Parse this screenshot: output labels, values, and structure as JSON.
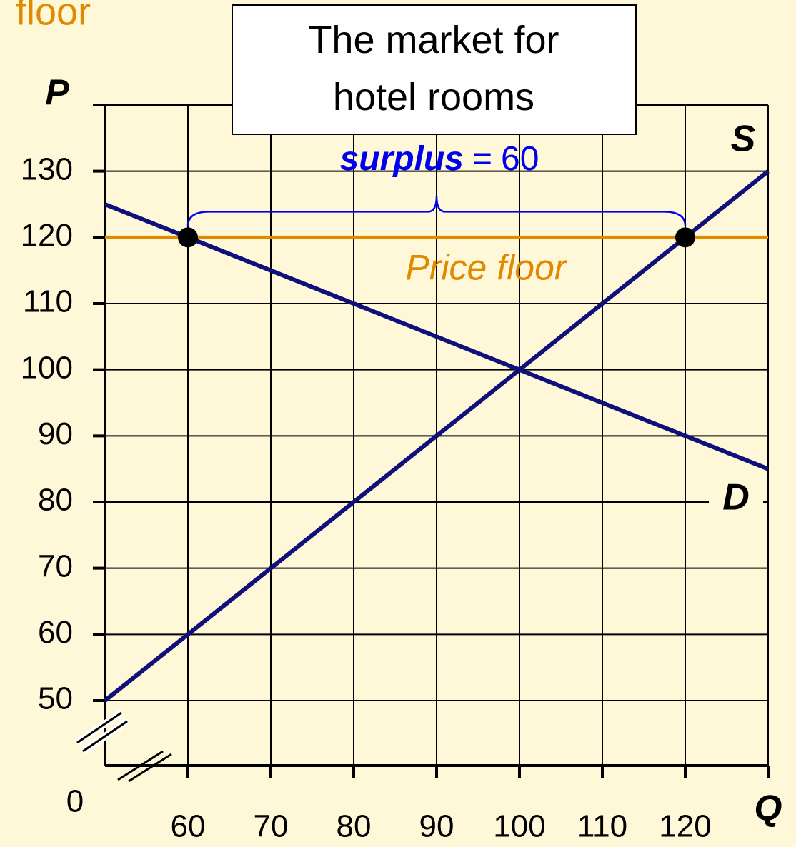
{
  "heading": "floor",
  "chart_data": {
    "type": "line",
    "title": "The market for hotel rooms",
    "x_label": "Q",
    "y_label": "P",
    "origin_label": "0",
    "xlim": [
      50,
      130
    ],
    "ylim": [
      50,
      140
    ],
    "xticks": [
      60,
      70,
      80,
      90,
      100,
      110,
      120
    ],
    "yticks": [
      50,
      60,
      70,
      80,
      90,
      100,
      110,
      120,
      130
    ],
    "grid": true,
    "series": [
      {
        "name": "S",
        "color": "#10107a",
        "x": [
          50,
          130
        ],
        "values": [
          50,
          130
        ]
      },
      {
        "name": "D",
        "color": "#10107a",
        "x": [
          50,
          130
        ],
        "values": [
          125,
          85
        ]
      }
    ],
    "price_floor": {
      "label": "Price floor",
      "value": 120,
      "color": "#e08a00"
    },
    "points": {
      "x": [
        60,
        120
      ],
      "values": [
        120,
        120
      ],
      "color": "#000000"
    },
    "surplus": {
      "label": "surplus",
      "sign": "=",
      "value": 60,
      "color": "#0000ee"
    }
  }
}
